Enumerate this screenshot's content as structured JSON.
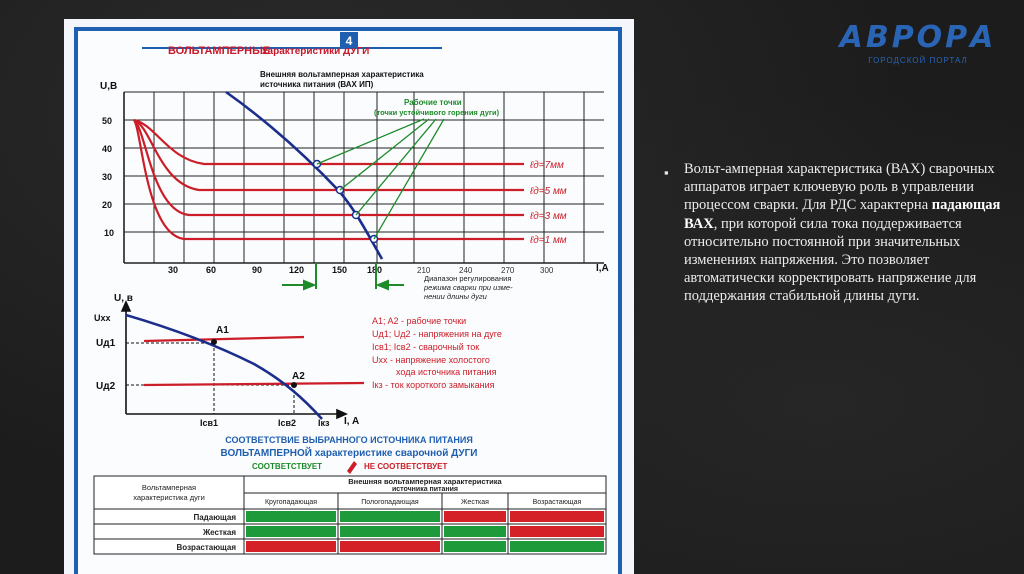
{
  "logo": {
    "name": "АВРОРА",
    "sub": "ГОРОДСКОЙ ПОРТАЛ"
  },
  "slide_text": {
    "part1": "Вольт-амперная характеристика (ВАХ) сварочных аппаратов играет ключевую роль в управлении процессом сварки. Для РДС характерна ",
    "bold": "падающая ВАХ",
    "part2": ", при которой сила тока поддерживается относительно постоянной при значительных изменениях напряжения. Это позволяет автоматически корректировать напряжение для поддержания стабильной длины дуги."
  },
  "poster": {
    "badge": "4",
    "title_big": "ВОЛЬТАМПЕРНЫЕ",
    "title_small": "характеристики ДУГИ",
    "graph1": {
      "y_label": "U,B",
      "x_label": "I,A",
      "y_ticks": [
        "50",
        "40",
        "30",
        "20",
        "10"
      ],
      "x_ticks": [
        "30",
        "60",
        "90",
        "120",
        "150",
        "180",
        "210",
        "240",
        "270",
        "300"
      ],
      "source_label_1": "Внешняя вольтамперная характеристика",
      "source_label_2": "источника питания (ВАХ ИП)",
      "work_points_1": "Рабочие точки",
      "work_points_2": "(точки устойчивого горения дуги)",
      "arc_labels": [
        "ℓд=7мм",
        "ℓд=5 мм",
        "ℓд=3 мм",
        "ℓд=1 мм"
      ],
      "range_1": "Диапазон регулирования",
      "range_2": "режима сварки при изме-",
      "range_3": "нении длины дуги"
    },
    "graph2": {
      "y_label": "U, в",
      "x_label": "I, A",
      "uxx": "Uхх",
      "ud1": "Uд1",
      "ud2": "Uд2",
      "a1": "A1",
      "a2": "A2",
      "icv1": "Iсв1",
      "icv2": "Iсв2",
      "ikz": "Iкз"
    },
    "legend": [
      "A1; A2 - рабочие точки",
      "Uд1; Uд2 - напряжения на дуге",
      "Iсв1; Iсв2 - сварочный ток",
      "Uхх - напряжение холостого",
      "хода источника питания",
      "Iкз - ток короткого замыкания"
    ],
    "compat_title_1": "СООТВЕТСТВИЕ ВЫБРАННОГО ИСТОЧНИКА ПИТАНИЯ",
    "compat_title_2": "ВОЛЬТАМПЕРНОЙ характеристике сварочной ДУГИ",
    "compat_yes": "СООТВЕТСТВУЕТ",
    "compat_no": "НЕ СООТВЕТСТВУЕТ",
    "table": {
      "corner_1": "Вольтамперная",
      "corner_2": "характеристика дуги",
      "header_1": "Внешняя вольтамперная характеристика",
      "header_2": "источника питания",
      "columns": [
        "Кругопадающая",
        "Пологопадающая",
        "Жесткая",
        "Возрастающая"
      ],
      "rows": [
        "Падающая",
        "Жесткая",
        "Возрастающая"
      ],
      "cells": [
        [
          "green",
          "green",
          "red",
          "red"
        ],
        [
          "green",
          "green",
          "green",
          "red"
        ],
        [
          "red",
          "red",
          "green",
          "green"
        ]
      ]
    }
  }
}
